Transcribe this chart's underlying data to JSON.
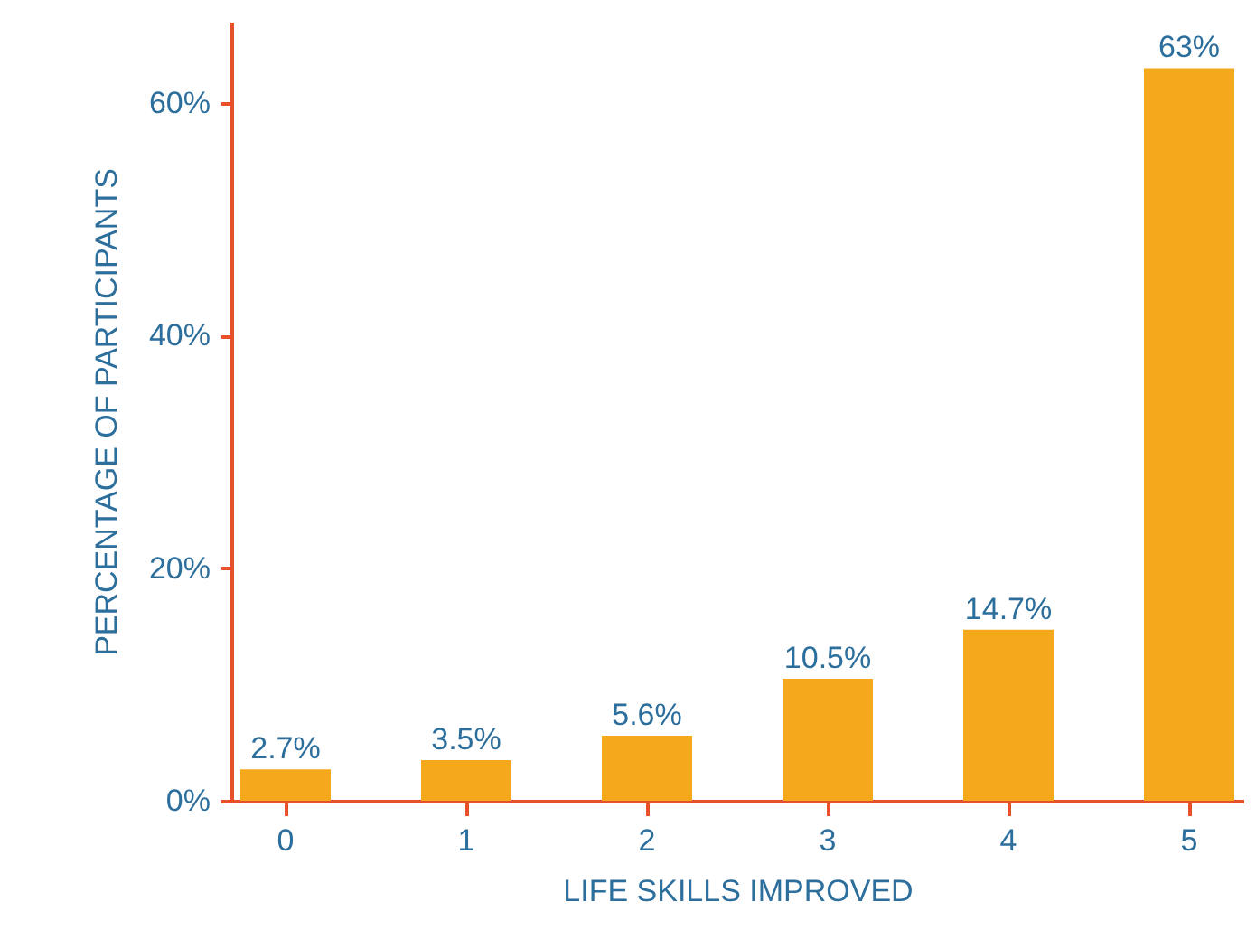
{
  "chart_data": {
    "type": "bar",
    "xlabel": "LIFE SKILLS IMPROVED",
    "ylabel": "PERCENTAGE OF PARTICIPANTS",
    "categories": [
      "0",
      "1",
      "2",
      "3",
      "4",
      "5"
    ],
    "values": [
      2.7,
      3.5,
      5.6,
      10.5,
      14.7,
      63
    ],
    "value_labels": [
      "2.7%",
      "3.5%",
      "5.6%",
      "10.5%",
      "14.7%",
      "63%"
    ],
    "color": "#f6a81c",
    "ylim": [
      0,
      67
    ],
    "yticks": [
      {
        "value": 0,
        "label": "0%"
      },
      {
        "value": 20,
        "label": "20%"
      },
      {
        "value": 40,
        "label": "40%"
      },
      {
        "value": 60,
        "label": "60%"
      }
    ],
    "grid": false
  }
}
